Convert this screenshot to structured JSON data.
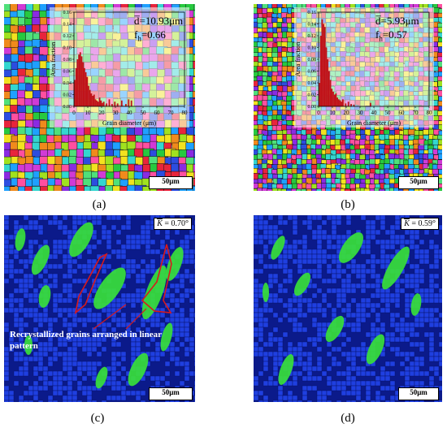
{
  "panels": {
    "a": {
      "label": "(a)",
      "scale_bar": "50μm",
      "stats": {
        "mean": "d̅=10.93μm",
        "fraction": "f",
        "fraction_sub": "h",
        "fraction_val": "=0.66"
      }
    },
    "b": {
      "label": "(b)",
      "scale_bar": "50μm",
      "stats": {
        "mean": "d̅=5.93μm",
        "fraction": "f",
        "fraction_sub": "h",
        "fraction_val": "=0.57"
      }
    },
    "c": {
      "label": "(c)",
      "scale_bar": "50μm",
      "kam_symbol": "K",
      "kam_value": " = 0.70°",
      "annotation_line1": "Recrystallized grains arranged in linear",
      "annotation_line2": "pattern"
    },
    "d": {
      "label": "(d)",
      "scale_bar": "50μm",
      "kam_symbol": "K",
      "kam_value": " = 0.59°"
    }
  },
  "colors": {
    "bar": "#c0141a",
    "kam_dark": "#0b1a8a",
    "kam_blue": "#1f3fe0",
    "kam_green": "#38e03a",
    "outline": "#d8191c"
  },
  "chart_data": [
    {
      "type": "bar",
      "panel": "a",
      "xlabel": "Grain diameter (μm)",
      "ylabel": "Area fraction",
      "xlim": [
        0,
        80
      ],
      "ylim": [
        0,
        0.16
      ],
      "xticks": [
        "0",
        "10",
        "20",
        "30",
        "40",
        "50",
        "60",
        "70",
        "80"
      ],
      "yticks": [
        "0.00",
        "0.02",
        "0.04",
        "0.06",
        "0.08",
        "0.10",
        "0.12",
        "0.14",
        "0.16"
      ],
      "x": [
        1,
        2,
        3,
        4,
        5,
        6,
        7,
        8,
        9,
        10,
        11,
        12,
        13,
        14,
        15,
        16,
        17,
        18,
        19,
        20,
        21,
        22,
        24,
        26,
        28,
        30,
        32,
        35,
        38,
        40,
        42
      ],
      "values": [
        0.045,
        0.065,
        0.08,
        0.088,
        0.092,
        0.085,
        0.075,
        0.065,
        0.058,
        0.05,
        0.035,
        0.028,
        0.022,
        0.018,
        0.02,
        0.012,
        0.01,
        0.008,
        0.015,
        0.01,
        0.006,
        0.008,
        0.005,
        0.012,
        0.004,
        0.008,
        0.005,
        0.01,
        0.004,
        0.012,
        0.01
      ]
    },
    {
      "type": "bar",
      "panel": "b",
      "xlabel": "Grain diameter (μm)",
      "ylabel": "Area fraction",
      "xlim": [
        0,
        80
      ],
      "ylim": [
        0,
        0.16
      ],
      "xticks": [
        "0",
        "10",
        "20",
        "30",
        "40",
        "50",
        "60",
        "70",
        "80"
      ],
      "yticks": [
        "0.00",
        "0.02",
        "0.04",
        "0.06",
        "0.08",
        "0.10",
        "0.12",
        "0.14",
        "0.16"
      ],
      "x": [
        1,
        2,
        3,
        4,
        5,
        6,
        7,
        8,
        9,
        10,
        11,
        12,
        13,
        14,
        15,
        16,
        17,
        18,
        20,
        22,
        24,
        26,
        38
      ],
      "values": [
        0.04,
        0.12,
        0.148,
        0.14,
        0.135,
        0.1,
        0.08,
        0.06,
        0.045,
        0.03,
        0.025,
        0.02,
        0.022,
        0.015,
        0.012,
        0.01,
        0.008,
        0.012,
        0.005,
        0.008,
        0.004,
        0.003,
        0.006
      ]
    }
  ]
}
